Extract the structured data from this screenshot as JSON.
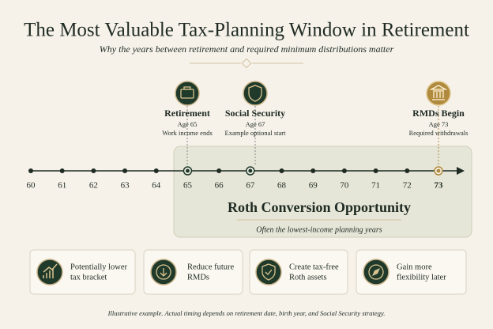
{
  "title": "The Most Valuable Tax-Planning Window in Retirement",
  "subtitle": "Why the years between retirement and required minimum distributions matter",
  "milestones": [
    {
      "label": "Retirement",
      "age": "Age 65",
      "note": "Work income ends"
    },
    {
      "label": "Social Security",
      "age": "Age 67",
      "note": "Example optional start"
    },
    {
      "label": "RMDs Begin",
      "age": "Age 73",
      "note": "Required withdrawals"
    }
  ],
  "timeline": {
    "ages": [
      "60",
      "61",
      "62",
      "63",
      "64",
      "65",
      "66",
      "67",
      "68",
      "69",
      "70",
      "71",
      "72",
      "73"
    ]
  },
  "opportunity": {
    "title": "Roth Conversion Opportunity",
    "subtitle": "Often the lowest-income planning years"
  },
  "benefits": [
    {
      "line1": "Potentially lower",
      "line2": "tax bracket"
    },
    {
      "line1": "Reduce future",
      "line2": "RMDs"
    },
    {
      "line1": "Create tax-free",
      "line2": "Roth assets"
    },
    {
      "line1": "Gain more",
      "line2": "flexibility later"
    }
  ],
  "footnote": "Illustrative example. Actual timing depends on retirement date, birth year, and Social Security strategy."
}
